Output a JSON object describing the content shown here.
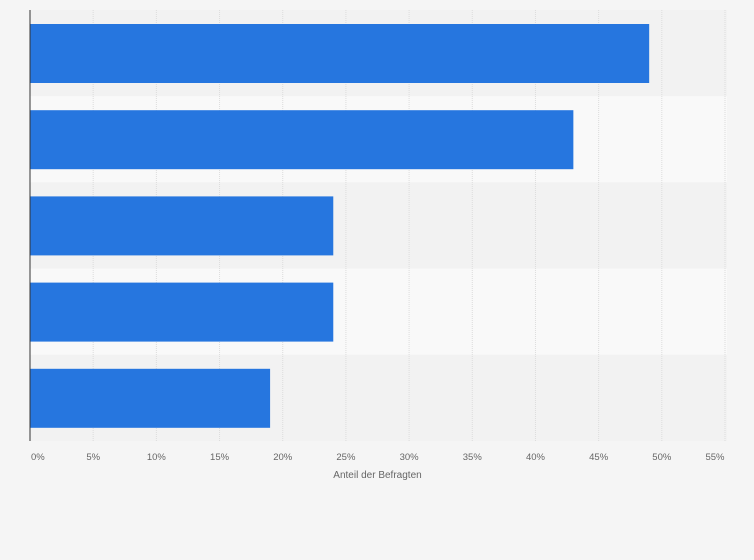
{
  "chart_data": {
    "type": "bar",
    "orientation": "horizontal",
    "categories": [
      "",
      "",
      "",
      "",
      ""
    ],
    "values": [
      49,
      43,
      24,
      24,
      19
    ],
    "xlabel": "Anteil der Befragten",
    "ylabel": "",
    "xlim": [
      0,
      55
    ],
    "x_ticks": [
      0,
      5,
      10,
      15,
      20,
      25,
      30,
      35,
      40,
      45,
      50,
      55
    ],
    "x_tick_labels": [
      "0%",
      "5%",
      "10%",
      "15%",
      "20%",
      "25%",
      "30%",
      "35%",
      "40%",
      "45%",
      "50%",
      "55%"
    ],
    "grid": true,
    "legend": "none",
    "colors": {
      "bar": "#2676df",
      "background": "#f5f5f5",
      "band_light": "#f9f9f9",
      "band_dark": "#f2f2f2",
      "grid": "#dcdcdc",
      "axis": "#333333",
      "tick_text": "#666666"
    }
  }
}
